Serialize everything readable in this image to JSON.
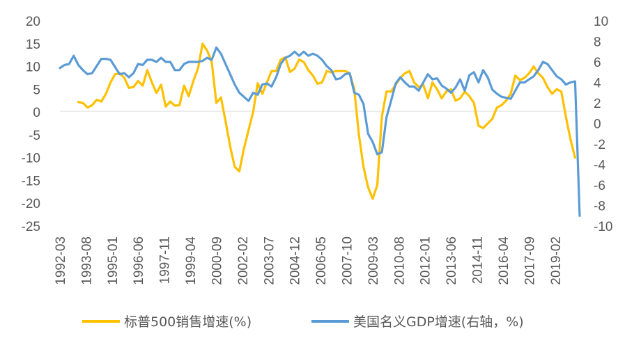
{
  "chart_data": {
    "type": "line",
    "title": "",
    "xlabel": "",
    "ylabel": "",
    "ylim": [
      -25,
      20
    ],
    "y2lim": [
      -10,
      10
    ],
    "yticks": [
      20,
      15,
      10,
      5,
      0,
      -5,
      -10,
      -15,
      -20,
      -25
    ],
    "y2ticks": [
      10,
      8,
      6,
      4,
      2,
      0,
      -2,
      -4,
      -6,
      -8,
      -10
    ],
    "x_tick_labels": [
      "1992-03",
      "1993-08",
      "1995-01",
      "1996-06",
      "1997-11",
      "1999-04",
      "2000-09",
      "2002-02",
      "2003-07",
      "2004-12",
      "2006-05",
      "2007-10",
      "2009-03",
      "2010-08",
      "2012-01",
      "2013-06",
      "2014-11",
      "2016-04",
      "2017-09",
      "2019-02"
    ],
    "legend_position": "bottom",
    "grid": false,
    "series": [
      {
        "name": "标普500销售增速(%)",
        "axis": "left",
        "color": "#FFC000",
        "x": [
          "1993-03",
          "1993-06",
          "1993-09",
          "1993-12",
          "1994-03",
          "1994-06",
          "1994-09",
          "1994-12",
          "1995-03",
          "1995-06",
          "1995-09",
          "1995-12",
          "1996-03",
          "1996-06",
          "1996-09",
          "1996-12",
          "1997-03",
          "1997-06",
          "1997-09",
          "1997-12",
          "1998-03",
          "1998-06",
          "1998-09",
          "1998-12",
          "1999-03",
          "1999-06",
          "1999-09",
          "1999-12",
          "2000-03",
          "2000-06",
          "2000-09",
          "2000-12",
          "2001-03",
          "2001-06",
          "2001-09",
          "2001-12",
          "2002-03",
          "2002-06",
          "2002-09",
          "2002-12",
          "2003-03",
          "2003-06",
          "2003-09",
          "2003-12",
          "2004-03",
          "2004-06",
          "2004-09",
          "2004-12",
          "2005-03",
          "2005-06",
          "2005-09",
          "2005-12",
          "2006-03",
          "2006-06",
          "2006-09",
          "2006-12",
          "2007-03",
          "2007-06",
          "2007-09",
          "2007-12",
          "2008-03",
          "2008-06",
          "2008-09",
          "2008-12",
          "2009-03",
          "2009-06",
          "2009-09",
          "2009-12",
          "2010-03",
          "2010-06",
          "2010-09",
          "2010-12",
          "2011-03",
          "2011-06",
          "2011-09",
          "2011-12",
          "2012-03",
          "2012-06",
          "2012-09",
          "2012-12",
          "2013-03",
          "2013-06",
          "2013-09",
          "2013-12",
          "2014-03",
          "2014-06",
          "2014-09",
          "2014-12",
          "2015-03",
          "2015-06",
          "2015-09",
          "2015-12",
          "2016-03",
          "2016-06",
          "2016-09",
          "2016-12",
          "2017-03",
          "2017-06",
          "2017-09",
          "2017-12",
          "2018-03",
          "2018-06",
          "2018-09",
          "2018-12",
          "2019-03",
          "2019-06",
          "2019-09",
          "2019-12",
          "2020-03"
        ],
        "values": [
          2.2,
          2.0,
          1.0,
          1.5,
          2.7,
          2.3,
          4.0,
          6.5,
          8.3,
          8.5,
          7.5,
          5.3,
          5.5,
          6.8,
          5.8,
          9.2,
          6.5,
          4.2,
          6.0,
          1.2,
          2.3,
          1.4,
          1.5,
          5.8,
          3.5,
          6.8,
          9.5,
          15.0,
          13.5,
          11.0,
          2.0,
          3.2,
          -2.0,
          -7.5,
          -12.0,
          -13.0,
          -8.0,
          -4.0,
          0.0,
          6.3,
          4.0,
          6.5,
          9.0,
          9.0,
          11.5,
          12.0,
          8.8,
          9.5,
          11.5,
          11.0,
          9.2,
          8.0,
          6.2,
          6.5,
          9.0,
          8.7,
          9.0,
          9.0,
          9.0,
          8.5,
          5.0,
          -5.0,
          -12.0,
          -16.5,
          -19.0,
          -16.0,
          -1.0,
          4.5,
          4.5,
          6.0,
          7.5,
          8.5,
          9.0,
          6.5,
          5.5,
          6.0,
          3.0,
          6.5,
          5.0,
          3.0,
          4.5,
          5.0,
          2.5,
          3.0,
          4.5,
          3.5,
          2.0,
          -3.0,
          -3.5,
          -2.5,
          -1.5,
          1.0,
          1.5,
          2.5,
          4.0,
          8.0,
          7.0,
          7.5,
          8.5,
          10.0,
          8.5,
          7.5,
          5.5,
          4.0,
          5.0,
          4.5,
          -1.0,
          -6.0,
          -10.0
        ]
      },
      {
        "name": "美国名义GDP增速(右轴，%)",
        "axis": "right",
        "color": "#5B9BD5",
        "x": [
          "1992-03",
          "1992-06",
          "1992-09",
          "1992-12",
          "1993-03",
          "1993-06",
          "1993-09",
          "1993-12",
          "1994-03",
          "1994-06",
          "1994-09",
          "1994-12",
          "1995-03",
          "1995-06",
          "1995-09",
          "1995-12",
          "1996-03",
          "1996-06",
          "1996-09",
          "1996-12",
          "1997-03",
          "1997-06",
          "1997-09",
          "1997-12",
          "1998-03",
          "1998-06",
          "1998-09",
          "1998-12",
          "1999-03",
          "1999-06",
          "1999-09",
          "1999-12",
          "2000-03",
          "2000-06",
          "2000-09",
          "2000-12",
          "2001-03",
          "2001-06",
          "2001-09",
          "2001-12",
          "2002-03",
          "2002-06",
          "2002-09",
          "2002-12",
          "2003-03",
          "2003-06",
          "2003-09",
          "2003-12",
          "2004-03",
          "2004-06",
          "2004-09",
          "2004-12",
          "2005-03",
          "2005-06",
          "2005-09",
          "2005-12",
          "2006-03",
          "2006-06",
          "2006-09",
          "2006-12",
          "2007-03",
          "2007-06",
          "2007-09",
          "2007-12",
          "2008-03",
          "2008-06",
          "2008-09",
          "2008-12",
          "2009-03",
          "2009-06",
          "2009-09",
          "2009-12",
          "2010-03",
          "2010-06",
          "2010-09",
          "2010-12",
          "2011-03",
          "2011-06",
          "2011-09",
          "2011-12",
          "2012-03",
          "2012-06",
          "2012-09",
          "2012-12",
          "2013-03",
          "2013-06",
          "2013-09",
          "2013-12",
          "2014-03",
          "2014-06",
          "2014-09",
          "2014-12",
          "2015-03",
          "2015-06",
          "2015-09",
          "2015-12",
          "2016-03",
          "2016-06",
          "2016-09",
          "2016-12",
          "2017-03",
          "2017-06",
          "2017-09",
          "2017-12",
          "2018-03",
          "2018-06",
          "2018-09",
          "2018-12",
          "2019-03",
          "2019-06",
          "2019-09",
          "2019-12",
          "2020-03",
          "2020-06"
        ],
        "values": [
          5.4,
          5.7,
          5.8,
          6.6,
          5.7,
          5.2,
          4.8,
          4.9,
          5.6,
          6.3,
          6.3,
          6.2,
          5.5,
          4.8,
          4.9,
          4.5,
          4.9,
          5.8,
          5.7,
          6.2,
          6.2,
          6.0,
          6.4,
          6.0,
          6.0,
          5.2,
          5.2,
          5.8,
          6.0,
          6.0,
          6.0,
          6.1,
          6.4,
          6.2,
          7.4,
          6.8,
          5.8,
          4.8,
          3.8,
          3.0,
          2.6,
          2.2,
          3.0,
          2.8,
          3.8,
          3.9,
          3.6,
          4.5,
          5.8,
          6.4,
          6.6,
          7.0,
          6.6,
          7.0,
          6.6,
          6.8,
          6.6,
          6.2,
          5.6,
          5.2,
          4.3,
          4.4,
          4.8,
          4.9,
          3.0,
          2.8,
          1.9,
          -1.0,
          -1.8,
          -3.0,
          -2.8,
          0.6,
          2.2,
          3.9,
          4.5,
          4.0,
          3.6,
          3.6,
          3.2,
          4.0,
          4.8,
          4.3,
          4.4,
          3.7,
          3.4,
          3.0,
          3.5,
          4.3,
          3.2,
          4.7,
          5.0,
          4.0,
          5.2,
          4.5,
          3.3,
          2.9,
          2.6,
          2.5,
          2.4,
          3.2,
          4.0,
          4.0,
          4.3,
          4.6,
          5.2,
          6.0,
          5.8,
          5.2,
          4.6,
          4.3,
          3.8,
          4.0,
          4.1,
          -9.0
        ]
      }
    ]
  }
}
